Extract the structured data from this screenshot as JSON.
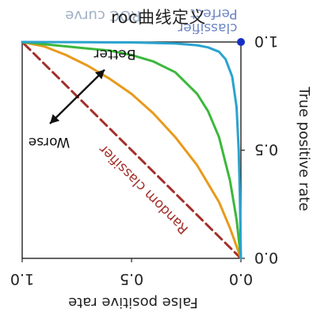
{
  "page": {
    "title": "roc曲线定义"
  },
  "chart_data": {
    "type": "line",
    "title": "ROC curve",
    "mirrored": true,
    "xlabel": "False positive rate",
    "ylabel": "True positive rate",
    "xlim": [
      0,
      1
    ],
    "ylim": [
      0,
      1
    ],
    "xticks": [
      {
        "value": 0.0,
        "label": "0.0"
      },
      {
        "value": 0.5,
        "label": "0.5"
      },
      {
        "value": 1.0,
        "label": "1.0"
      }
    ],
    "yticks": [
      {
        "value": 0.0,
        "label": "0.0"
      },
      {
        "value": 0.5,
        "label": "0.5"
      },
      {
        "value": 1.0,
        "label": "1.0"
      }
    ],
    "grid": false,
    "series": [
      {
        "name": "Random classifier",
        "style": "dashed",
        "color": "#a3302b",
        "x": [
          0,
          1
        ],
        "y": [
          0,
          1
        ]
      },
      {
        "color": "#e89a1c",
        "x": [
          0,
          0.05,
          0.1,
          0.2,
          0.3,
          0.4,
          0.5,
          0.6,
          0.7,
          0.8,
          0.9,
          1.0
        ],
        "y": [
          0,
          0.14,
          0.26,
          0.43,
          0.56,
          0.67,
          0.76,
          0.83,
          0.89,
          0.94,
          0.98,
          1.0
        ]
      },
      {
        "color": "#3cb83c",
        "x": [
          0,
          0.02,
          0.05,
          0.1,
          0.15,
          0.2,
          0.3,
          0.4,
          0.5,
          0.6,
          0.7,
          0.8,
          0.9,
          1.0
        ],
        "y": [
          0,
          0.18,
          0.36,
          0.56,
          0.68,
          0.76,
          0.86,
          0.91,
          0.94,
          0.96,
          0.97,
          0.98,
          0.99,
          1.0
        ]
      },
      {
        "color": "#2aa3cf",
        "x": [
          0,
          0.005,
          0.01,
          0.02,
          0.04,
          0.07,
          0.1,
          0.15,
          0.2,
          0.3,
          0.5,
          0.7,
          1.0
        ],
        "y": [
          0,
          0.3,
          0.5,
          0.7,
          0.84,
          0.92,
          0.955,
          0.975,
          0.985,
          0.993,
          0.998,
          0.999,
          1.0
        ]
      }
    ],
    "points": [
      {
        "name": "Perfect classifier",
        "x": 0,
        "y": 1,
        "color": "#1530c8"
      }
    ],
    "annotations": {
      "better": "Better",
      "worse": "Worse",
      "random": "Random classifier",
      "perfect_line1": "Perfect",
      "perfect_line2": "classifier"
    }
  }
}
